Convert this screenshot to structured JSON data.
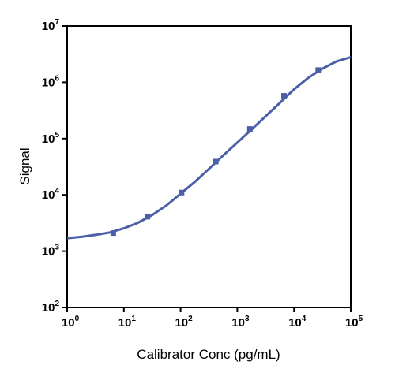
{
  "chart_data": {
    "type": "scatter",
    "title": "",
    "xlabel": "Calibrator Conc (pg/mL)",
    "ylabel": "Signal",
    "x_scale": "log",
    "y_scale": "log",
    "xlim": [
      1,
      100000
    ],
    "ylim": [
      100,
      10000000
    ],
    "x_ticks": [
      {
        "base": "10",
        "exp": "0"
      },
      {
        "base": "10",
        "exp": "1"
      },
      {
        "base": "10",
        "exp": "2"
      },
      {
        "base": "10",
        "exp": "3"
      },
      {
        "base": "10",
        "exp": "4"
      },
      {
        "base": "10",
        "exp": "5"
      }
    ],
    "y_ticks": [
      {
        "base": "10",
        "exp": "2"
      },
      {
        "base": "10",
        "exp": "3"
      },
      {
        "base": "10",
        "exp": "4"
      },
      {
        "base": "10",
        "exp": "5"
      },
      {
        "base": "10",
        "exp": "6"
      },
      {
        "base": "10",
        "exp": "7"
      }
    ],
    "grid": false,
    "legend": "none",
    "series": [
      {
        "x": [
          6.5,
          26,
          104,
          417,
          1667,
          6667,
          26667
        ],
        "y": [
          2100,
          4100,
          11000,
          39000,
          148000,
          575000,
          1650000
        ],
        "marker": "square",
        "color": "#4a5fa8"
      }
    ],
    "fit_curve": {
      "type": "4PL",
      "x": [
        1,
        1.78,
        3.16,
        5.62,
        10,
        17.8,
        31.6,
        56.2,
        100,
        178,
        316,
        562,
        1000,
        1780,
        3160,
        5620,
        10000,
        17800,
        31600,
        56200,
        100000
      ],
      "y": [
        1700,
        1800,
        1950,
        2150,
        2550,
        3200,
        4400,
        6500,
        10500,
        17000,
        29000,
        50000,
        85000,
        145000,
        250000,
        430000,
        750000,
        1200000,
        1750000,
        2350000,
        2800000
      ],
      "color": "#4a5fa8"
    }
  }
}
